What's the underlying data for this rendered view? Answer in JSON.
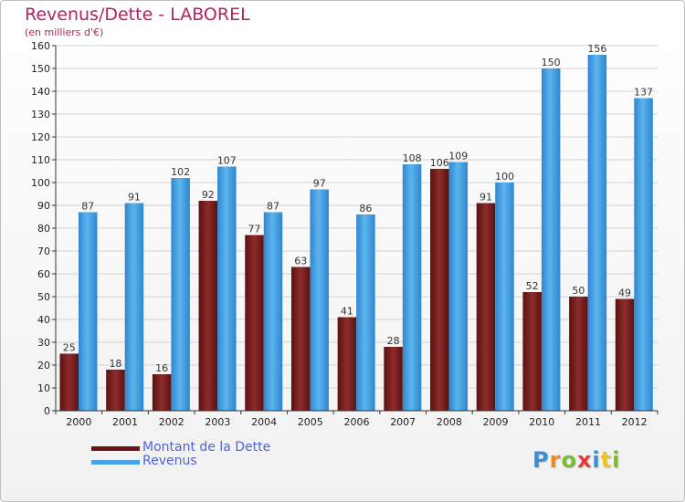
{
  "title": "Revenus/Dette - LABOREL",
  "subtitle": "(en milliers d'€)",
  "legend": [
    {
      "label": "Montant de la Dette",
      "color": "#7a1f1f"
    },
    {
      "label": "Revenus",
      "color": "#4aa3e4"
    }
  ],
  "logo_text": "Proxiti",
  "colors": {
    "title": "#b0245f",
    "legend_text": "#4e64d6",
    "dette": "#7a1f1f",
    "revenus": "#4aa3e4",
    "axis": "#333333"
  },
  "chart_data": {
    "type": "bar",
    "categories": [
      "2000",
      "2001",
      "2002",
      "2003",
      "2004",
      "2005",
      "2006",
      "2007",
      "2008",
      "2009",
      "2010",
      "2011",
      "2012"
    ],
    "series": [
      {
        "name": "Montant de la Dette",
        "values": [
          25,
          18,
          16,
          92,
          77,
          63,
          41,
          28,
          106,
          91,
          52,
          50,
          49
        ]
      },
      {
        "name": "Revenus",
        "values": [
          87,
          91,
          102,
          107,
          87,
          97,
          86,
          108,
          109,
          100,
          150,
          156,
          137
        ]
      }
    ],
    "ylim": [
      0,
      160
    ],
    "yticks": [
      0,
      10,
      20,
      30,
      40,
      50,
      60,
      70,
      80,
      90,
      100,
      110,
      120,
      130,
      140,
      150,
      160
    ],
    "grid": true,
    "legend_position": "bottom-left"
  }
}
